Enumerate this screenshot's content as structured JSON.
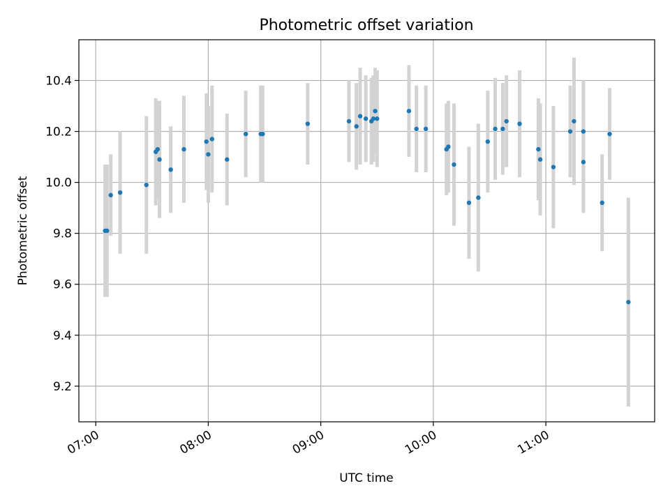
{
  "chart_data": {
    "type": "scatter",
    "title": "Photometric offset variation",
    "xlabel": "UTC time",
    "ylabel": "Photometric offset",
    "x_ticks": [
      "07:00",
      "08:00",
      "09:00",
      "10:00",
      "11:00"
    ],
    "x_tick_minutes": [
      420,
      480,
      540,
      600,
      660
    ],
    "xlim_minutes": [
      411,
      718
    ],
    "ylim": [
      9.06,
      10.56
    ],
    "y_ticks": [
      9.2,
      9.4,
      9.6,
      9.8,
      10.0,
      10.2,
      10.4
    ],
    "grid": true,
    "colors": {
      "point": "#1f77b4",
      "errorbar": "#d3d3d3"
    },
    "series": [
      {
        "x": [
          "07:05",
          "07:06",
          "07:08",
          "07:13",
          "07:27",
          "07:32",
          "07:33",
          "07:34",
          "07:40",
          "07:47",
          "07:59",
          "08:00",
          "08:02",
          "08:10",
          "08:20",
          "08:28",
          "08:29",
          "08:53",
          "09:15",
          "09:19",
          "09:21",
          "09:24",
          "09:27",
          "09:28",
          "09:29",
          "09:30",
          "09:47",
          "09:51",
          "09:56",
          "10:07",
          "10:08",
          "10:11",
          "10:19",
          "10:24",
          "10:29",
          "10:33",
          "10:37",
          "10:39",
          "10:46",
          "10:56",
          "10:57",
          "11:04",
          "11:13",
          "11:15",
          "11:20",
          "11:20",
          "11:30",
          "11:34",
          "11:44"
        ],
        "y": [
          9.81,
          9.81,
          9.95,
          9.96,
          9.99,
          10.12,
          10.13,
          10.09,
          10.05,
          10.13,
          10.16,
          10.11,
          10.17,
          10.09,
          10.19,
          10.19,
          10.19,
          10.23,
          10.24,
          10.22,
          10.26,
          10.25,
          10.24,
          10.25,
          10.28,
          10.25,
          10.28,
          10.21,
          10.21,
          10.13,
          10.14,
          10.07,
          9.92,
          9.94,
          10.16,
          10.21,
          10.21,
          10.24,
          10.23,
          10.13,
          10.09,
          10.06,
          10.2,
          10.24,
          10.2,
          10.08,
          9.92,
          10.19,
          9.53
        ],
        "err": [
          0.26,
          0.26,
          0.16,
          0.24,
          0.27,
          0.21,
          0.19,
          0.23,
          0.17,
          0.21,
          0.19,
          0.19,
          0.21,
          0.18,
          0.17,
          0.19,
          0.19,
          0.16,
          0.16,
          0.17,
          0.19,
          0.17,
          0.17,
          0.17,
          0.17,
          0.19,
          0.18,
          0.17,
          0.17,
          0.18,
          0.18,
          0.24,
          0.22,
          0.29,
          0.2,
          0.2,
          0.18,
          0.18,
          0.21,
          0.2,
          0.22,
          0.24,
          0.18,
          0.25,
          0.2,
          0.2,
          0.19,
          0.18,
          0.41
        ]
      }
    ]
  }
}
